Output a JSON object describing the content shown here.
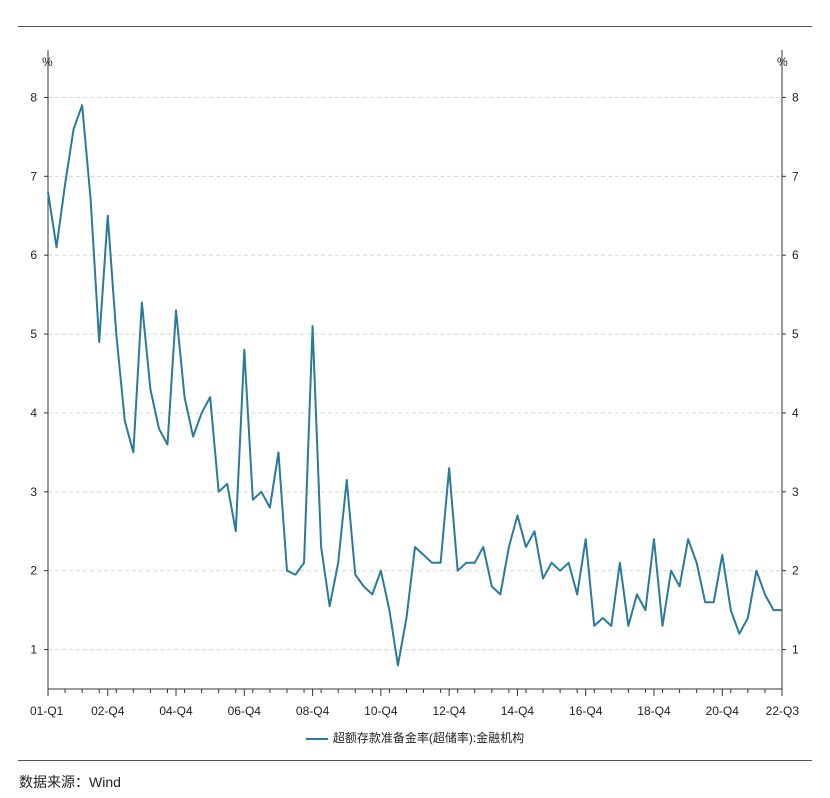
{
  "chart_data": {
    "type": "line",
    "title": "",
    "ylabel_left": "%",
    "ylabel_right": "%",
    "ylim": [
      0.5,
      8.5
    ],
    "yticks": [
      1,
      2,
      3,
      4,
      5,
      6,
      7,
      8
    ],
    "x_tick_labels": [
      "01-Q1",
      "02-Q4",
      "04-Q4",
      "06-Q4",
      "08-Q4",
      "10-Q4",
      "12-Q4",
      "14-Q4",
      "16-Q4",
      "18-Q4",
      "20-Q4",
      "22-Q3"
    ],
    "x_tick_positions": [
      0,
      7,
      15,
      23,
      31,
      39,
      47,
      55,
      63,
      71,
      79,
      86
    ],
    "grid": true,
    "series": [
      {
        "name": "超额存款准备金率(超储率):金融机构",
        "color": "#2a7a9b",
        "values": [
          6.8,
          6.1,
          6.9,
          7.6,
          7.9,
          6.7,
          4.9,
          6.5,
          5.0,
          3.9,
          3.5,
          5.4,
          4.3,
          3.8,
          3.6,
          5.3,
          4.2,
          3.7,
          4.0,
          4.2,
          3.0,
          3.1,
          2.5,
          4.8,
          2.9,
          3.0,
          2.8,
          3.5,
          2.0,
          1.95,
          2.1,
          5.1,
          2.3,
          1.55,
          2.1,
          3.15,
          1.95,
          1.8,
          1.7,
          2.0,
          1.5,
          0.8,
          1.4,
          2.3,
          2.2,
          2.1,
          2.1,
          3.3,
          2.0,
          2.1,
          2.1,
          2.3,
          1.8,
          1.7,
          2.3,
          2.7,
          2.3,
          2.5,
          1.9,
          2.1,
          2.0,
          2.1,
          1.7,
          2.4,
          1.3,
          1.4,
          1.3,
          2.1,
          1.3,
          1.7,
          1.5,
          2.4,
          1.3,
          2.0,
          1.8,
          2.4,
          2.1,
          1.6,
          1.6,
          2.2,
          1.5,
          1.2,
          1.4,
          2.0,
          1.7,
          1.5,
          1.5
        ]
      }
    ]
  },
  "legend": {
    "label": "超额存款准备金率(超储率):金融机构"
  },
  "source": {
    "text": "数据来源：Wind"
  }
}
